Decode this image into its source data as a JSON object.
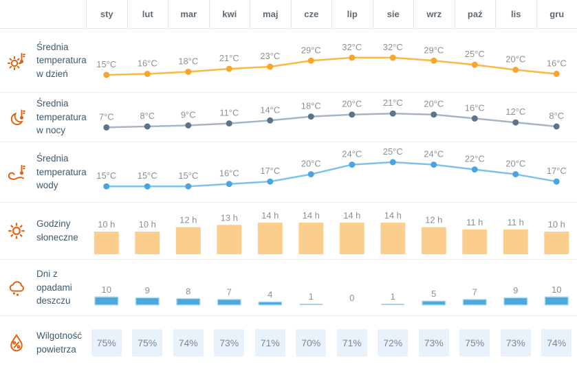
{
  "months": [
    "sty",
    "lut",
    "mar",
    "kwi",
    "maj",
    "cze",
    "lip",
    "sie",
    "wrz",
    "paź",
    "lis",
    "gru"
  ],
  "ui_colors": {
    "icon_orange": "#E2620F",
    "row_title_text": "#3D5A6E",
    "month_header_text": "#5F6A72",
    "value_label_text": "#8A9096",
    "separator": "#E9EBED"
  },
  "chart_data": [
    {
      "id": "day-temp",
      "type": "line",
      "title": "Średnia temperatura w dzień",
      "icon": "sun-thermometer-icon",
      "unit": "°C",
      "categories": [
        "sty",
        "lut",
        "mar",
        "kwi",
        "maj",
        "cze",
        "lip",
        "sie",
        "wrz",
        "paź",
        "lis",
        "gru"
      ],
      "values": [
        15,
        16,
        18,
        21,
        23,
        29,
        32,
        32,
        29,
        25,
        20,
        16
      ],
      "colors": {
        "line": "#FBB843",
        "dot": "#F7A52B"
      }
    },
    {
      "id": "night-temp",
      "type": "line",
      "title": "Średnia temperatura w nocy",
      "icon": "moon-thermometer-icon",
      "unit": "°C",
      "categories": [
        "sty",
        "lut",
        "mar",
        "kwi",
        "maj",
        "cze",
        "lip",
        "sie",
        "wrz",
        "paź",
        "lis",
        "gru"
      ],
      "values": [
        7,
        8,
        9,
        11,
        14,
        18,
        20,
        21,
        20,
        16,
        12,
        8
      ],
      "colors": {
        "line": "#A6B5C3",
        "dot": "#5C7389"
      }
    },
    {
      "id": "water-temp",
      "type": "line",
      "title": "Średnia temperatura wody",
      "icon": "wave-thermometer-icon",
      "unit": "°C",
      "categories": [
        "sty",
        "lut",
        "mar",
        "kwi",
        "maj",
        "cze",
        "lip",
        "sie",
        "wrz",
        "paź",
        "lis",
        "gru"
      ],
      "values": [
        15,
        15,
        15,
        16,
        17,
        20,
        24,
        25,
        24,
        22,
        20,
        17
      ],
      "colors": {
        "line": "#7CC3EC",
        "dot": "#47A5DF"
      }
    },
    {
      "id": "sun-hours",
      "type": "bar",
      "title": "Godziny słoneczne",
      "icon": "sun-icon",
      "unit": " h",
      "categories": [
        "sty",
        "lut",
        "mar",
        "kwi",
        "maj",
        "cze",
        "lip",
        "sie",
        "wrz",
        "paź",
        "lis",
        "gru"
      ],
      "values": [
        10,
        10,
        12,
        13,
        14,
        14,
        14,
        14,
        12,
        11,
        11,
        10
      ],
      "colors": {
        "bar": "#FBCE8E"
      }
    },
    {
      "id": "rain-days",
      "type": "bar",
      "title": "Dni z opadami deszczu",
      "icon": "rain-cloud-icon",
      "unit": "",
      "categories": [
        "sty",
        "lut",
        "mar",
        "kwi",
        "maj",
        "cze",
        "lip",
        "sie",
        "wrz",
        "paź",
        "lis",
        "gru"
      ],
      "values": [
        10,
        9,
        8,
        7,
        4,
        1,
        0,
        1,
        5,
        7,
        9,
        10
      ],
      "colors": {
        "bar": "#4FA8DC",
        "bar_light": "#A9D4EF",
        "bar_halo": "#BCDFF4"
      }
    },
    {
      "id": "humidity",
      "type": "chip",
      "title": "Wilgotność powietrza",
      "icon": "humidity-drop-icon",
      "unit": "%",
      "categories": [
        "sty",
        "lut",
        "mar",
        "kwi",
        "maj",
        "cze",
        "lip",
        "sie",
        "wrz",
        "paź",
        "lis",
        "gru"
      ],
      "values": [
        75,
        75,
        74,
        73,
        71,
        70,
        71,
        72,
        73,
        75,
        73,
        74
      ],
      "colors": {
        "chip_bg": "#E9F2FB",
        "text": "#7B8894"
      }
    }
  ]
}
